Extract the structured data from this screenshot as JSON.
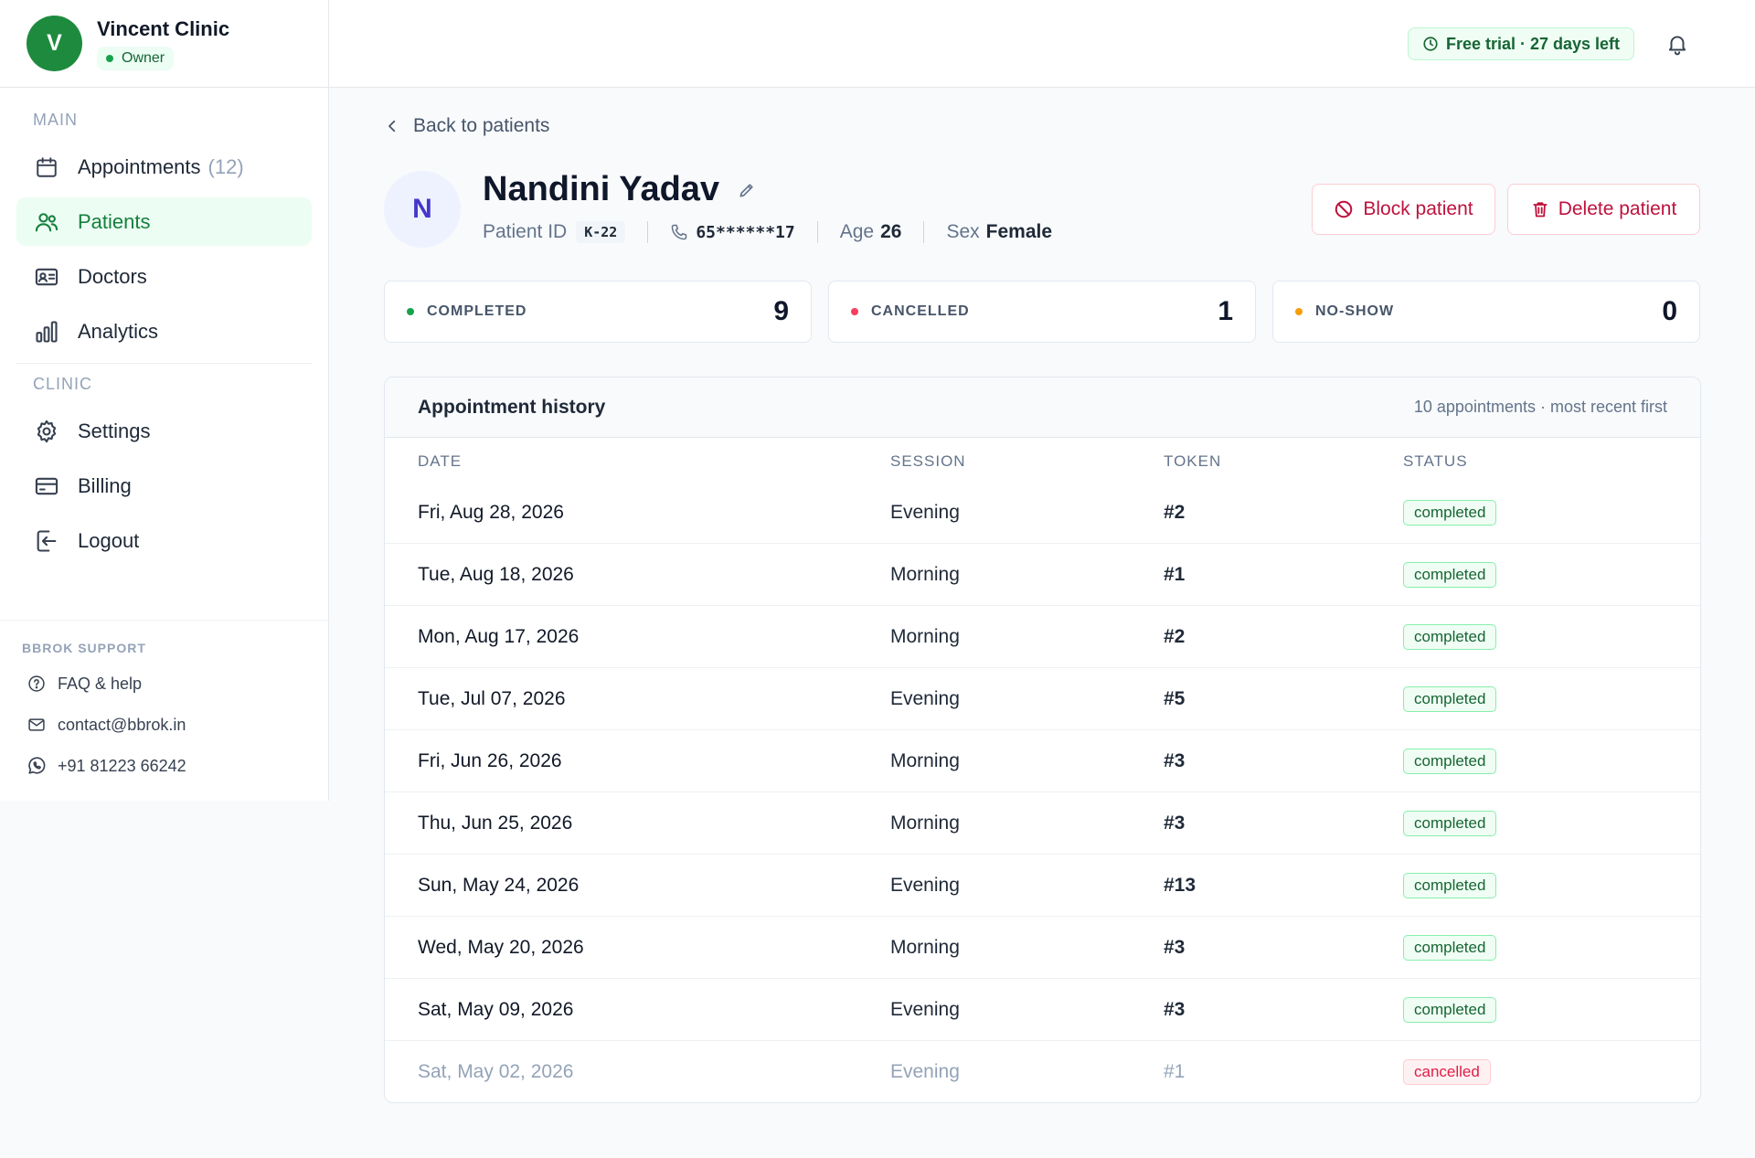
{
  "sidebar": {
    "clinic_initial": "V",
    "clinic_name": "Vincent Clinic",
    "role": "Owner",
    "section_main": "MAIN",
    "section_clinic": "CLINIC",
    "nav": {
      "appointments": {
        "label": "Appointments",
        "count": "(12)",
        "icon": "calendar-icon"
      },
      "patients": {
        "label": "Patients",
        "icon": "users-icon",
        "active": true
      },
      "doctors": {
        "label": "Doctors",
        "icon": "id-card-icon"
      },
      "analytics": {
        "label": "Analytics",
        "icon": "bar-chart-icon"
      },
      "settings": {
        "label": "Settings",
        "icon": "gear-icon"
      },
      "billing": {
        "label": "Billing",
        "icon": "credit-card-icon"
      },
      "logout": {
        "label": "Logout",
        "icon": "logout-icon"
      }
    },
    "support": {
      "label": "BBROK SUPPORT",
      "faq": "FAQ & help",
      "email": "contact@bbrok.in",
      "phone": "+91 81223 66242"
    }
  },
  "topbar": {
    "trial": "Free trial · 27 days left"
  },
  "patient": {
    "back_label": "Back to patients",
    "initial": "N",
    "name": "Nandini Yadav",
    "id_label": "Patient ID",
    "id": "K-22",
    "phone": "65******17",
    "age_label": "Age",
    "age": "26",
    "sex_label": "Sex",
    "sex": "Female",
    "block_label": "Block patient",
    "delete_label": "Delete patient"
  },
  "stats": {
    "completed": {
      "label": "COMPLETED",
      "value": "9",
      "color": "#16a34a"
    },
    "cancelled": {
      "label": "CANCELLED",
      "value": "1",
      "color": "#f43f5e"
    },
    "noshow": {
      "label": "NO-SHOW",
      "value": "0",
      "color": "#f59e0b"
    }
  },
  "history": {
    "title": "Appointment history",
    "subtitle": "10 appointments · most recent first",
    "columns": {
      "date": "DATE",
      "session": "SESSION",
      "token": "TOKEN",
      "status": "STATUS"
    },
    "rows": [
      {
        "date": "Fri, Aug 28, 2026",
        "session": "Evening",
        "token": "#2",
        "status": "completed"
      },
      {
        "date": "Tue, Aug 18, 2026",
        "session": "Morning",
        "token": "#1",
        "status": "completed"
      },
      {
        "date": "Mon, Aug 17, 2026",
        "session": "Morning",
        "token": "#2",
        "status": "completed"
      },
      {
        "date": "Tue, Jul 07, 2026",
        "session": "Evening",
        "token": "#5",
        "status": "completed"
      },
      {
        "date": "Fri, Jun 26, 2026",
        "session": "Morning",
        "token": "#3",
        "status": "completed"
      },
      {
        "date": "Thu, Jun 25, 2026",
        "session": "Morning",
        "token": "#3",
        "status": "completed"
      },
      {
        "date": "Sun, May 24, 2026",
        "session": "Evening",
        "token": "#13",
        "status": "completed"
      },
      {
        "date": "Wed, May 20, 2026",
        "session": "Morning",
        "token": "#3",
        "status": "completed"
      },
      {
        "date": "Sat, May 09, 2026",
        "session": "Evening",
        "token": "#3",
        "status": "completed"
      },
      {
        "date": "Sat, May 02, 2026",
        "session": "Evening",
        "token": "#1",
        "status": "cancelled"
      }
    ]
  }
}
